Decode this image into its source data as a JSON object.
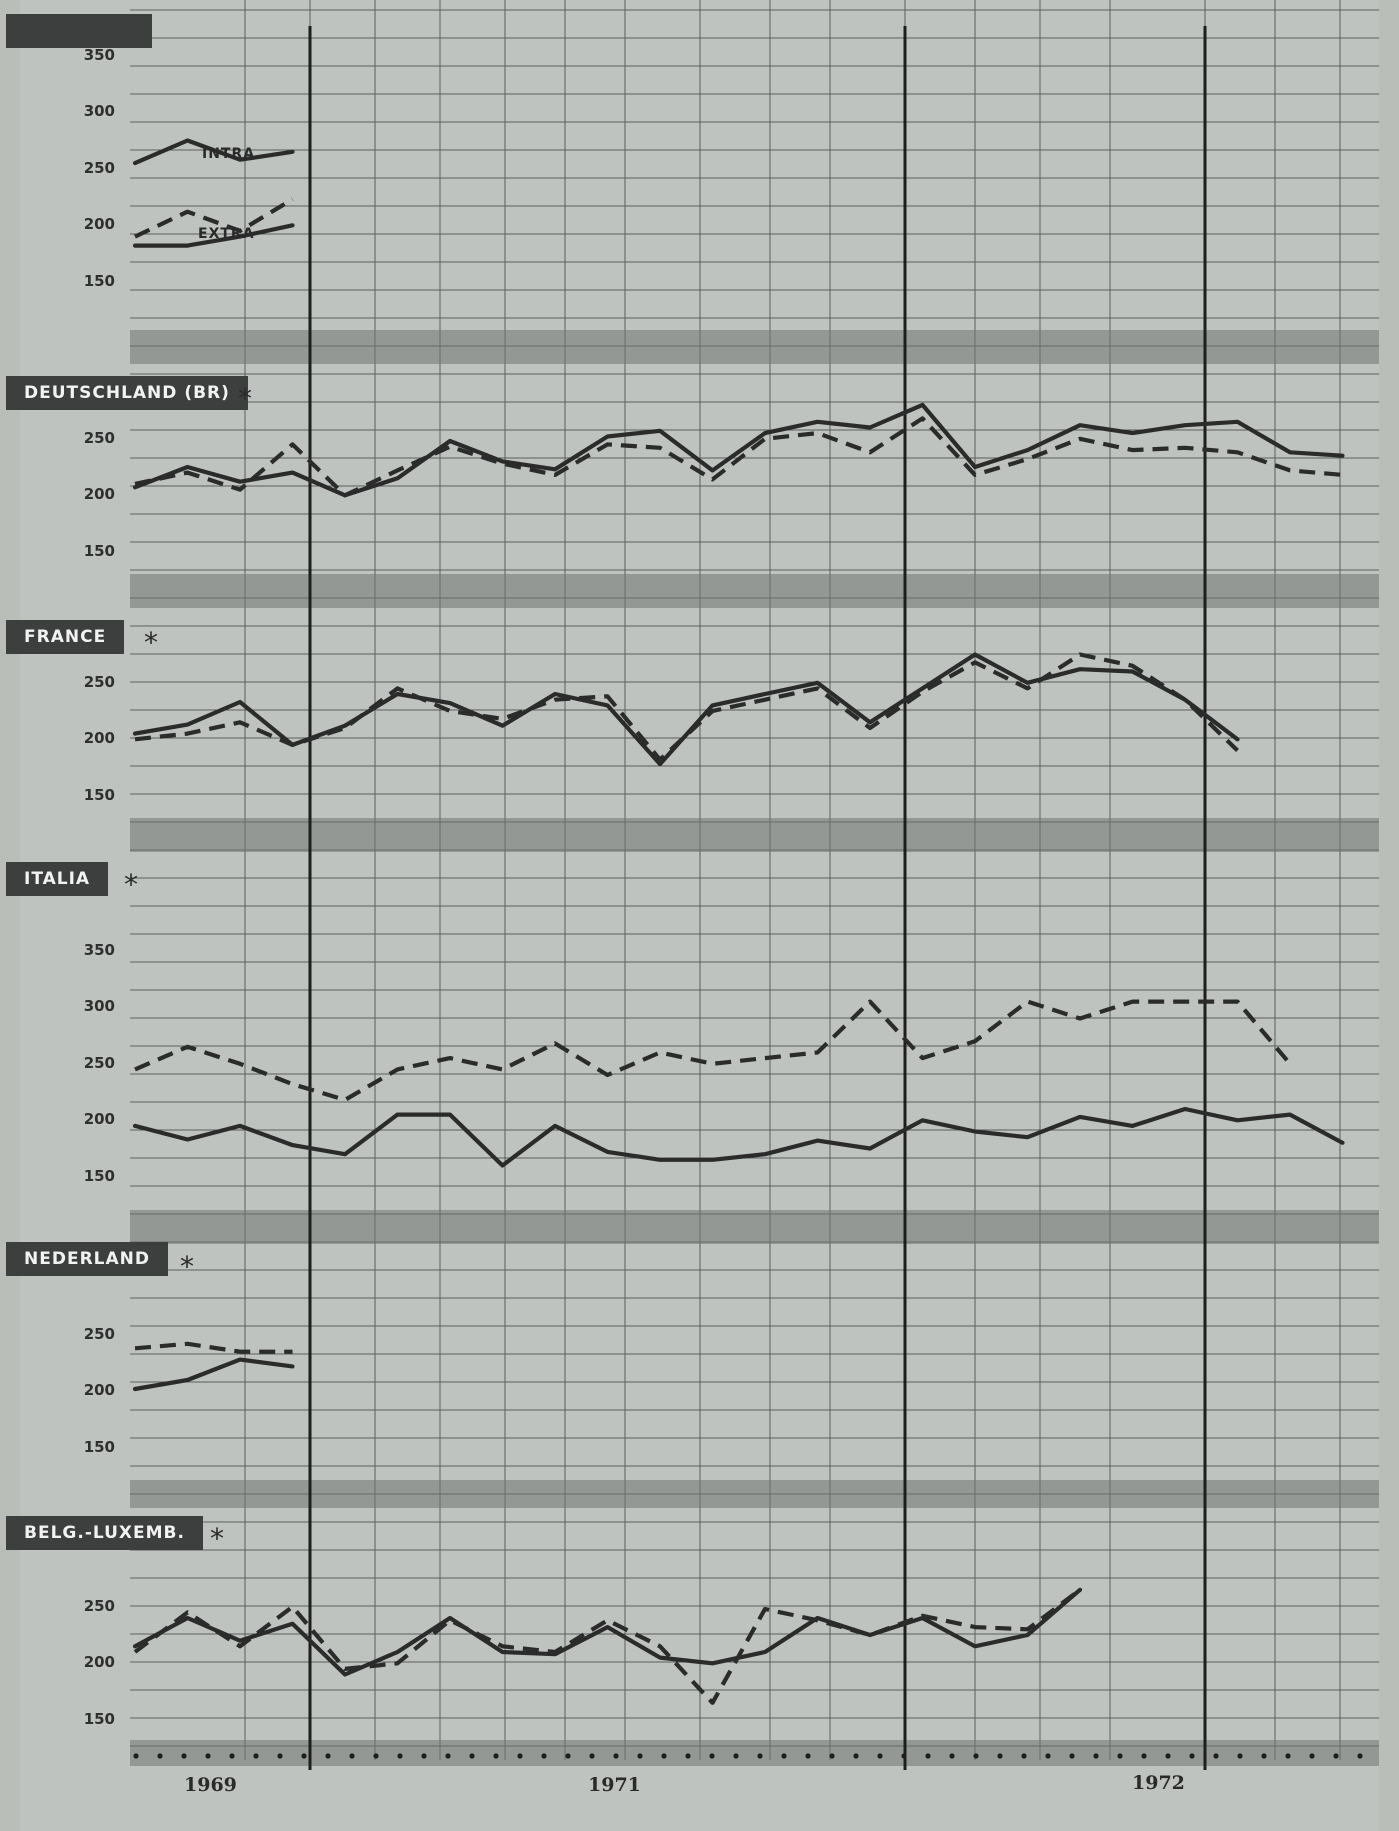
{
  "page": {
    "years": [
      "1969",
      "1971",
      "1972"
    ]
  },
  "colors": {
    "ink": "#2b2b2b",
    "paper": "#b9beb9",
    "label_bg": "#3c3f3e",
    "label_text": "#f2f2f2"
  },
  "chart_data": [
    {
      "id": "eur",
      "type": "line",
      "title": "",
      "ylim": [
        125,
        375
      ],
      "yticks": [
        "350",
        "300",
        "250",
        "200",
        "150"
      ],
      "annotations": [
        "INTRA",
        "EXTRA"
      ],
      "series": [
        {
          "name": "INTRA",
          "style": "solid",
          "start": 0,
          "values": [
            255,
            275,
            258,
            265
          ]
        },
        {
          "name": "EXTRA",
          "style": "dashed",
          "start": 0,
          "values": [
            190,
            212,
            195,
            223
          ]
        },
        {
          "style": "solid",
          "start": 0,
          "values": [
            182,
            182,
            190,
            200
          ]
        }
      ]
    },
    {
      "id": "de",
      "type": "line",
      "title": "DEUTSCHLAND (BR)",
      "asterisk": "*",
      "ylim": [
        125,
        300
      ],
      "yticks": [
        "250",
        "200",
        "150"
      ],
      "series": [
        {
          "style": "solid",
          "start": 0,
          "values": [
            207,
            225,
            212,
            220,
            200,
            215,
            248,
            230,
            223,
            252,
            257,
            222,
            255,
            265,
            260,
            280,
            225,
            240,
            262,
            255,
            262,
            265,
            238,
            235
          ]
        },
        {
          "style": "dashed",
          "start": 0,
          "values": [
            210,
            220,
            205,
            245,
            200,
            222,
            243,
            228,
            218,
            245,
            242,
            214,
            250,
            255,
            238,
            268,
            218,
            232,
            250,
            240,
            242,
            238,
            222,
            218
          ]
        }
      ]
    },
    {
      "id": "fr",
      "type": "line",
      "title": "FRANCE",
      "asterisk": "*",
      "ylim": [
        125,
        300
      ],
      "yticks": [
        "250",
        "200",
        "150"
      ],
      "series": [
        {
          "style": "solid",
          "start": 0,
          "values": [
            205,
            213,
            233,
            195,
            212,
            240,
            232,
            212,
            240,
            230,
            178,
            230,
            240,
            250,
            215,
            245,
            275,
            250,
            262,
            260,
            235,
            200
          ]
        },
        {
          "style": "dashed",
          "start": 0,
          "values": [
            200,
            205,
            215,
            195,
            210,
            245,
            225,
            218,
            235,
            238,
            182,
            225,
            235,
            245,
            210,
            242,
            268,
            245,
            275,
            265,
            235,
            190
          ]
        }
      ]
    },
    {
      "id": "it",
      "type": "line",
      "title": "ITALIA",
      "asterisk": "*",
      "ylim": [
        125,
        375
      ],
      "yticks": [
        "350",
        "300",
        "250",
        "200",
        "150"
      ],
      "series": [
        {
          "style": "solid",
          "start": 0,
          "values": [
            195,
            183,
            195,
            178,
            170,
            205,
            205,
            160,
            195,
            172,
            165,
            165,
            170,
            182,
            175,
            200,
            190,
            185,
            203,
            195,
            210,
            200,
            205,
            180
          ]
        },
        {
          "style": "dashed",
          "start": 0,
          "values": [
            245,
            265,
            250,
            232,
            218,
            245,
            255,
            245,
            268,
            240,
            260,
            250,
            255,
            260,
            305,
            255,
            270,
            305,
            290,
            305,
            305,
            305,
            250
          ]
        }
      ]
    },
    {
      "id": "nl",
      "type": "line",
      "title": "NEDERLAND",
      "asterisk": "*",
      "ylim": [
        125,
        300
      ],
      "yticks": [
        "250",
        "200",
        "150"
      ],
      "series": [
        {
          "style": "solid",
          "start": 0,
          "values": [
            202,
            210,
            228,
            222
          ]
        },
        {
          "style": "dashed",
          "start": 0,
          "values": [
            238,
            242,
            235,
            235
          ]
        }
      ]
    },
    {
      "id": "bl",
      "type": "line",
      "title": "BELG.-LUXEMB.",
      "asterisk": "*",
      "ylim": [
        125,
        300
      ],
      "yticks": [
        "250",
        "200",
        "150"
      ],
      "series": [
        {
          "style": "solid",
          "start": 0,
          "values": [
            215,
            240,
            220,
            235,
            190,
            210,
            240,
            210,
            208,
            232,
            205,
            200,
            210,
            240,
            225,
            240,
            215,
            225,
            265
          ]
        },
        {
          "style": "dashed",
          "start": 0,
          "values": [
            210,
            245,
            215,
            250,
            195,
            200,
            238,
            215,
            210,
            238,
            215,
            165,
            248,
            238,
            225,
            242,
            232,
            230,
            265
          ]
        }
      ]
    }
  ]
}
